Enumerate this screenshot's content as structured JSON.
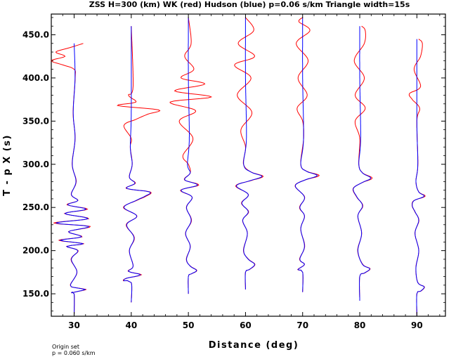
{
  "chart_data": {
    "type": "line",
    "title": "ZSS H=300 (km) WK (red) Hudson (blue) p=0.06 s/km Triangle width=15s",
    "xlabel": "Distance (deg)",
    "ylabel": "T - p X (s)",
    "xlim": [
      26,
      95
    ],
    "ylim": [
      124,
      474
    ],
    "xticks": [
      30,
      40,
      50,
      60,
      70,
      80,
      90
    ],
    "xtick_labels": [
      "30",
      "40",
      "50",
      "60",
      "70",
      "80",
      "90"
    ],
    "yticks": [
      150,
      200,
      250,
      300,
      350,
      400,
      450
    ],
    "ytick_labels": [
      "150.0",
      "200.0",
      "250.0",
      "300.0",
      "350.0",
      "400.0",
      "450.0"
    ],
    "grid": false,
    "legend": "none",
    "series_colors": {
      "WK": "#ff0000",
      "Hudson": "#0000ff"
    },
    "traces": [
      {
        "distance": 30,
        "t_start": 124,
        "t_end": 440,
        "waveform": [
          [
            124,
            0
          ],
          [
            150,
            0
          ],
          [
            151,
            -0.3
          ],
          [
            153,
            0.5
          ],
          [
            155,
            1.2
          ],
          [
            157,
            0.2
          ],
          [
            160,
            -0.4
          ],
          [
            175,
            0.3
          ],
          [
            190,
            -0.3
          ],
          [
            200,
            0.4
          ],
          [
            205,
            -0.8
          ],
          [
            208,
            1.0
          ],
          [
            212,
            -1.5
          ],
          [
            216,
            0.8
          ],
          [
            222,
            -0.6
          ],
          [
            228,
            1.6
          ],
          [
            232,
            -2.0
          ],
          [
            237,
            1.5
          ],
          [
            243,
            -1.0
          ],
          [
            248,
            1.3
          ],
          [
            253,
            -0.7
          ],
          [
            258,
            0.4
          ],
          [
            265,
            -0.3
          ],
          [
            280,
            0.2
          ],
          [
            300,
            -0.2
          ],
          [
            330,
            0.1
          ],
          [
            360,
            -0.1
          ],
          [
            400,
            0.1
          ],
          [
            440,
            0.0
          ]
        ],
        "wk_extra": [
          [
            410,
            0.0
          ],
          [
            415,
            -1.2
          ],
          [
            420,
            -2.5
          ],
          [
            425,
            -1.0
          ],
          [
            430,
            -2.0
          ],
          [
            435,
            -0.5
          ],
          [
            440,
            1.0
          ]
        ]
      },
      {
        "distance": 40,
        "t_start": 140,
        "t_end": 460,
        "waveform": [
          [
            140,
            0
          ],
          [
            163,
            0
          ],
          [
            165,
            -0.8
          ],
          [
            168,
            -0.5
          ],
          [
            172,
            1.0
          ],
          [
            176,
            -0.3
          ],
          [
            182,
            0.2
          ],
          [
            200,
            -0.2
          ],
          [
            215,
            0.3
          ],
          [
            230,
            -0.5
          ],
          [
            240,
            0.6
          ],
          [
            250,
            -0.8
          ],
          [
            258,
            0.5
          ],
          [
            263,
            1.5
          ],
          [
            268,
            2.0
          ],
          [
            272,
            -0.5
          ],
          [
            278,
            0.4
          ],
          [
            285,
            -0.2
          ],
          [
            300,
            0.1
          ],
          [
            320,
            -0.1
          ],
          [
            360,
            0.0
          ],
          [
            460,
            0.0
          ]
        ],
        "wk_extra": [
          [
            330,
            0.0
          ],
          [
            345,
            -0.8
          ],
          [
            352,
            0.5
          ],
          [
            358,
            1.8
          ],
          [
            363,
            3.0
          ],
          [
            368,
            -1.5
          ],
          [
            372,
            0.5
          ],
          [
            380,
            -0.3
          ],
          [
            390,
            0.2
          ],
          [
            460,
            0.0
          ]
        ]
      },
      {
        "distance": 50,
        "t_start": 150,
        "t_end": 470,
        "waveform": [
          [
            150,
            0
          ],
          [
            170,
            0
          ],
          [
            173,
            0.3
          ],
          [
            177,
            0.9
          ],
          [
            182,
            0.2
          ],
          [
            190,
            -0.2
          ],
          [
            205,
            0.2
          ],
          [
            220,
            -0.3
          ],
          [
            235,
            0.3
          ],
          [
            250,
            -0.2
          ],
          [
            262,
            0.4
          ],
          [
            270,
            -0.8
          ],
          [
            276,
            1.0
          ],
          [
            282,
            -0.4
          ],
          [
            290,
            0.2
          ],
          [
            300,
            -0.1
          ],
          [
            330,
            0.1
          ],
          [
            400,
            0.0
          ],
          [
            470,
            0.0
          ]
        ],
        "wk_extra": [
          [
            300,
            0.0
          ],
          [
            310,
            -0.6
          ],
          [
            330,
            0.5
          ],
          [
            350,
            -1.0
          ],
          [
            362,
            0.8
          ],
          [
            372,
            -2.0
          ],
          [
            378,
            2.5
          ],
          [
            385,
            -1.5
          ],
          [
            393,
            1.8
          ],
          [
            400,
            -0.8
          ],
          [
            410,
            0.6
          ],
          [
            425,
            -0.4
          ],
          [
            440,
            0.3
          ],
          [
            470,
            0.0
          ]
        ]
      },
      {
        "distance": 60,
        "t_start": 155,
        "t_end": 470,
        "waveform": [
          [
            155,
            0
          ],
          [
            175,
            0
          ],
          [
            178,
            0.4
          ],
          [
            184,
            1.0
          ],
          [
            190,
            0.3
          ],
          [
            200,
            -0.2
          ],
          [
            220,
            0.2
          ],
          [
            235,
            -0.3
          ],
          [
            245,
            0.3
          ],
          [
            255,
            -0.4
          ],
          [
            265,
            0.3
          ],
          [
            275,
            -1.0
          ],
          [
            281,
            0.5
          ],
          [
            286,
            1.8
          ],
          [
            291,
            0.6
          ],
          [
            300,
            -0.2
          ],
          [
            330,
            0.1
          ],
          [
            400,
            0.0
          ],
          [
            470,
            0.0
          ]
        ],
        "wk_extra": [
          [
            320,
            0.0
          ],
          [
            340,
            -0.5
          ],
          [
            360,
            0.7
          ],
          [
            380,
            -0.9
          ],
          [
            400,
            0.6
          ],
          [
            415,
            -1.2
          ],
          [
            425,
            1.0
          ],
          [
            440,
            -0.8
          ],
          [
            455,
            0.9
          ],
          [
            470,
            0.0
          ]
        ]
      },
      {
        "distance": 70,
        "t_start": 152,
        "t_end": 470,
        "waveform": [
          [
            152,
            0
          ],
          [
            175,
            0
          ],
          [
            178,
            -0.5
          ],
          [
            184,
            0.2
          ],
          [
            190,
            -0.3
          ],
          [
            205,
            0.2
          ],
          [
            225,
            -0.2
          ],
          [
            240,
            0.2
          ],
          [
            250,
            -0.3
          ],
          [
            262,
            0.2
          ],
          [
            275,
            -0.8
          ],
          [
            282,
            0.3
          ],
          [
            287,
            1.6
          ],
          [
            292,
            0.4
          ],
          [
            300,
            -0.2
          ],
          [
            330,
            0.1
          ],
          [
            400,
            0.0
          ],
          [
            470,
            0.0
          ]
        ],
        "wk_extra": [
          [
            350,
            0.0
          ],
          [
            365,
            -0.6
          ],
          [
            380,
            0.5
          ],
          [
            400,
            -0.5
          ],
          [
            420,
            0.6
          ],
          [
            440,
            -0.7
          ],
          [
            455,
            0.8
          ],
          [
            465,
            -0.4
          ],
          [
            470,
            0.0
          ]
        ]
      },
      {
        "distance": 80,
        "t_start": 142,
        "t_end": 460,
        "waveform": [
          [
            142,
            0
          ],
          [
            170,
            0
          ],
          [
            174,
            0.5
          ],
          [
            179,
            1.1
          ],
          [
            184,
            0.3
          ],
          [
            200,
            -0.2
          ],
          [
            220,
            0.2
          ],
          [
            240,
            -0.2
          ],
          [
            252,
            0.3
          ],
          [
            262,
            -0.3
          ],
          [
            272,
            -0.7
          ],
          [
            279,
            0.3
          ],
          [
            284,
            1.2
          ],
          [
            290,
            0.3
          ],
          [
            300,
            -0.1
          ],
          [
            330,
            0.1
          ],
          [
            400,
            0.0
          ],
          [
            460,
            0.0
          ]
        ],
        "wk_extra": [
          [
            330,
            0.0
          ],
          [
            350,
            -0.5
          ],
          [
            365,
            0.6
          ],
          [
            380,
            -0.5
          ],
          [
            400,
            0.5
          ],
          [
            420,
            -0.6
          ],
          [
            440,
            0.5
          ],
          [
            455,
            0.6
          ],
          [
            460,
            0.2
          ]
        ]
      },
      {
        "distance": 90,
        "t_start": 125,
        "t_end": 445,
        "waveform": [
          [
            125,
            0
          ],
          [
            150,
            0
          ],
          [
            153,
            0.4
          ],
          [
            158,
            0.8
          ],
          [
            163,
            0.1
          ],
          [
            180,
            -0.1
          ],
          [
            200,
            0.2
          ],
          [
            220,
            -0.2
          ],
          [
            235,
            0.2
          ],
          [
            245,
            -0.2
          ],
          [
            252,
            -0.5
          ],
          [
            258,
            -0.3
          ],
          [
            263,
            0.8
          ],
          [
            268,
            0.2
          ],
          [
            280,
            -0.1
          ],
          [
            300,
            0.1
          ],
          [
            350,
            0.0
          ],
          [
            445,
            0.0
          ]
        ],
        "wk_extra": [
          [
            350,
            0.0
          ],
          [
            365,
            0.3
          ],
          [
            375,
            -0.5
          ],
          [
            382,
            -0.8
          ],
          [
            390,
            0.4
          ],
          [
            410,
            -0.3
          ],
          [
            425,
            0.4
          ],
          [
            440,
            0.6
          ],
          [
            445,
            0.2
          ]
        ]
      }
    ],
    "amplitude_scale_deg": 1.6
  },
  "footer": {
    "line1": "Origin set",
    "line2": "p = 0.060 s/km"
  }
}
